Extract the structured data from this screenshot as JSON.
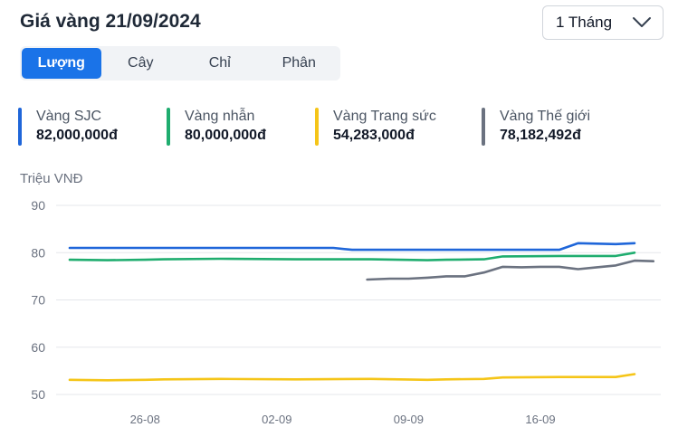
{
  "header": {
    "title": "Giá vàng 21/09/2024",
    "period_select": {
      "value": "1 Tháng"
    }
  },
  "tabs": [
    {
      "label": "Lượng",
      "active": true
    },
    {
      "label": "Cây",
      "active": false
    },
    {
      "label": "Chỉ",
      "active": false
    },
    {
      "label": "Phân",
      "active": false
    }
  ],
  "legend": [
    {
      "name": "Vàng SJC",
      "value": "82,000,000đ",
      "color": "#1f66d9"
    },
    {
      "name": "Vàng nhẫn",
      "value": "80,000,000đ",
      "color": "#1fad6f"
    },
    {
      "name": "Vàng Trang sức",
      "value": "54,283,000đ",
      "color": "#f5c518"
    },
    {
      "name": "Vàng Thế giới",
      "value": "78,182,492đ",
      "color": "#6b7280"
    }
  ],
  "chart_data": {
    "type": "line",
    "ylabel": "Triệu VNĐ",
    "ylim": [
      50,
      90
    ],
    "yticks": [
      90,
      80,
      70,
      60,
      50
    ],
    "xlabels": [
      "26-08",
      "02-09",
      "09-09",
      "16-09"
    ],
    "xlabel_indices": [
      4,
      11,
      18,
      25
    ],
    "n_days": 31,
    "grid": true,
    "series": [
      {
        "name": "Vàng SJC",
        "color": "#1f66d9",
        "x": [
          0,
          14,
          15,
          26,
          27,
          29,
          30
        ],
        "y": [
          81.0,
          81.0,
          80.6,
          80.6,
          82.0,
          81.8,
          82.0
        ]
      },
      {
        "name": "Vàng nhẫn",
        "color": "#1fad6f",
        "x": [
          0,
          2,
          4,
          5,
          8,
          12,
          16,
          19,
          20,
          22,
          23,
          26,
          29,
          30
        ],
        "y": [
          78.5,
          78.4,
          78.5,
          78.6,
          78.7,
          78.6,
          78.6,
          78.4,
          78.5,
          78.6,
          79.2,
          79.3,
          79.3,
          80.0
        ]
      },
      {
        "name": "Vàng Trang sức",
        "color": "#f5c518",
        "x": [
          0,
          2,
          4,
          5,
          8,
          12,
          16,
          19,
          20,
          22,
          23,
          26,
          29,
          30
        ],
        "y": [
          53.1,
          53.0,
          53.1,
          53.2,
          53.3,
          53.2,
          53.3,
          53.1,
          53.2,
          53.3,
          53.6,
          53.7,
          53.7,
          54.3
        ]
      },
      {
        "name": "Vàng Thế giới",
        "color": "#6b7280",
        "x": [
          15.8,
          17,
          18,
          19,
          20,
          21,
          22,
          23,
          24,
          25,
          26,
          27,
          28,
          29,
          30,
          31
        ],
        "y": [
          74.3,
          74.5,
          74.5,
          74.7,
          75.0,
          75.0,
          75.8,
          77.0,
          76.9,
          77.0,
          77.0,
          76.5,
          76.9,
          77.3,
          78.3,
          78.2
        ]
      }
    ]
  }
}
